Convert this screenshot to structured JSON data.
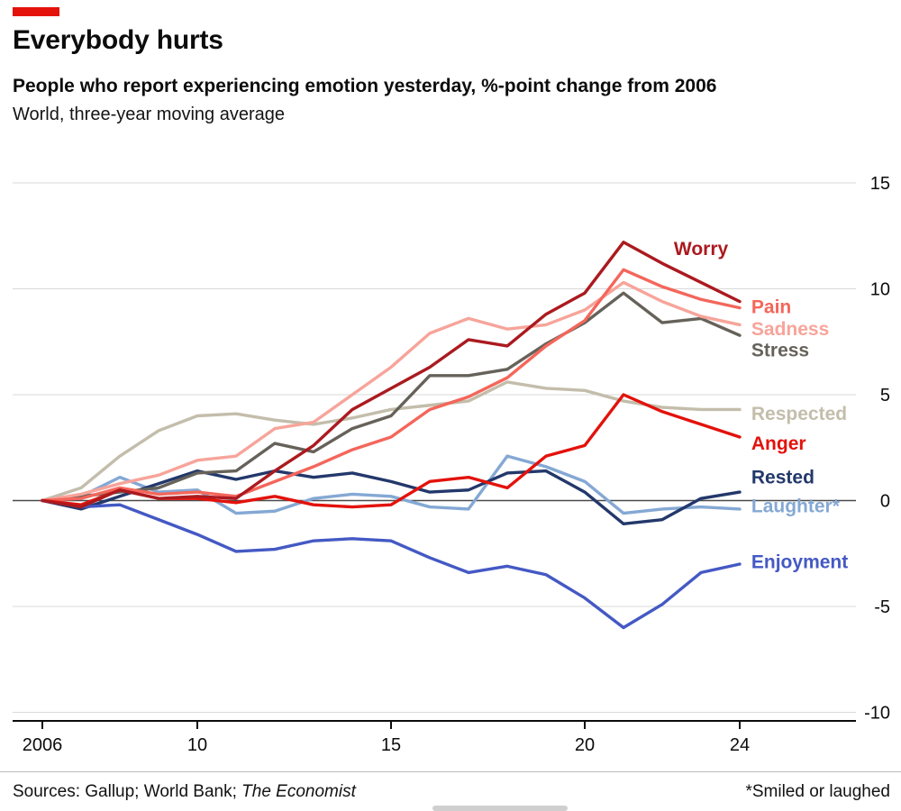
{
  "header": {
    "title": "Everybody hurts",
    "subtitle": "People who report experiencing emotion yesterday, %-point change from 2006",
    "subtitle2": "World, three-year moving average"
  },
  "footer": {
    "sources_prefix": "Sources: Gallup; World Bank; ",
    "sources_italic": "The Economist",
    "footnote": "*Smiled or laughed"
  },
  "colors": {
    "accent_red": "#e3120b",
    "grid_line": "#d9d9d9",
    "zero_line": "#4a4a4a",
    "axis_line": "#0c0c0c",
    "tick_text": "#0c0c0c"
  },
  "chart_data": {
    "type": "line",
    "title": "Everybody hurts",
    "subtitle": "People who report experiencing emotion yesterday, %-point change from 2006",
    "note": "World, three-year moving average",
    "xlabel": "",
    "ylabel": "%-point change from 2006",
    "grid": true,
    "legend_position": "inline-right",
    "x": [
      2006,
      2007,
      2008,
      2009,
      2010,
      2011,
      2012,
      2013,
      2014,
      2015,
      2016,
      2017,
      2018,
      2019,
      2020,
      2021,
      2022,
      2023,
      2024
    ],
    "x_ticks": [
      {
        "value": 2006,
        "label": "2006"
      },
      {
        "value": 2010,
        "label": "10"
      },
      {
        "value": 2015,
        "label": "15"
      },
      {
        "value": 2020,
        "label": "20"
      },
      {
        "value": 2024,
        "label": "24"
      }
    ],
    "y_ticks": [
      15,
      10,
      5,
      0,
      -5,
      -10
    ],
    "y_range": [
      -10,
      15
    ],
    "series": [
      {
        "name": "Respected",
        "color": "#c3bdab",
        "values": [
          0,
          0.6,
          2.1,
          3.3,
          4.0,
          4.1,
          3.8,
          3.6,
          3.9,
          4.3,
          4.5,
          4.7,
          5.6,
          5.3,
          5.2,
          4.7,
          4.4,
          4.3,
          4.3
        ],
        "label": {
          "x": 2024.3,
          "y": 4.1
        }
      },
      {
        "name": "Laughter*",
        "color": "#84a8d4",
        "values": [
          0,
          0.2,
          1.1,
          0.4,
          0.5,
          -0.6,
          -0.5,
          0.1,
          0.3,
          0.2,
          -0.3,
          -0.4,
          2.1,
          1.6,
          0.9,
          -0.6,
          -0.4,
          -0.3,
          -0.4
        ],
        "label": {
          "x": 2024.3,
          "y": -0.25
        }
      },
      {
        "name": "Rested",
        "color": "#23386b",
        "values": [
          0,
          -0.4,
          0.2,
          0.8,
          1.4,
          1.0,
          1.4,
          1.1,
          1.3,
          0.9,
          0.4,
          0.5,
          1.3,
          1.4,
          0.4,
          -1.1,
          -0.9,
          0.1,
          0.4
        ],
        "label": {
          "x": 2024.3,
          "y": 1.1
        }
      },
      {
        "name": "Enjoyment",
        "color": "#4459c4",
        "values": [
          0,
          -0.3,
          -0.2,
          -0.9,
          -1.6,
          -2.4,
          -2.3,
          -1.9,
          -1.8,
          -1.9,
          -2.7,
          -3.4,
          -3.1,
          -3.5,
          -4.6,
          -6.0,
          -4.9,
          -3.4,
          -3.0
        ],
        "label": {
          "x": 2024.3,
          "y": -2.9
        }
      },
      {
        "name": "Stress",
        "color": "#66625a",
        "values": [
          0,
          0.2,
          0.4,
          0.6,
          1.3,
          1.4,
          2.7,
          2.3,
          3.4,
          4.0,
          5.9,
          5.9,
          6.2,
          7.4,
          8.4,
          9.8,
          8.4,
          8.6,
          7.8
        ],
        "label": {
          "x": 2024.3,
          "y": 7.1
        }
      },
      {
        "name": "Sadness",
        "color": "#f7a49a",
        "values": [
          0,
          0.3,
          0.8,
          1.2,
          1.9,
          2.1,
          3.4,
          3.7,
          5.0,
          6.3,
          7.9,
          8.6,
          8.1,
          8.3,
          9.0,
          10.3,
          9.4,
          8.7,
          8.3
        ],
        "label": {
          "x": 2024.3,
          "y": 8.1
        }
      },
      {
        "name": "Pain",
        "color": "#f4665b",
        "values": [
          0,
          0.1,
          0.6,
          0.3,
          0.4,
          0.2,
          0.9,
          1.6,
          2.4,
          3.0,
          4.3,
          4.9,
          5.8,
          7.3,
          8.5,
          10.9,
          10.1,
          9.5,
          9.1
        ],
        "label": {
          "x": 2024.3,
          "y": 9.15
        }
      },
      {
        "name": "Anger",
        "color": "#e3120b",
        "values": [
          0,
          -0.2,
          0.5,
          0.1,
          0.1,
          -0.1,
          0.2,
          -0.2,
          -0.3,
          -0.2,
          0.9,
          1.1,
          0.6,
          2.1,
          2.6,
          5.0,
          4.2,
          3.6,
          3.0
        ],
        "label": {
          "x": 2024.3,
          "y": 2.7
        }
      },
      {
        "name": "Worry",
        "color": "#ab1a1f",
        "values": [
          0,
          -0.3,
          0.5,
          0.1,
          0.2,
          0.1,
          1.4,
          2.6,
          4.3,
          5.3,
          6.3,
          7.6,
          7.3,
          8.8,
          9.8,
          12.2,
          11.2,
          10.3,
          9.4
        ],
        "label": {
          "x": 2022.3,
          "y": 11.9
        }
      }
    ]
  }
}
